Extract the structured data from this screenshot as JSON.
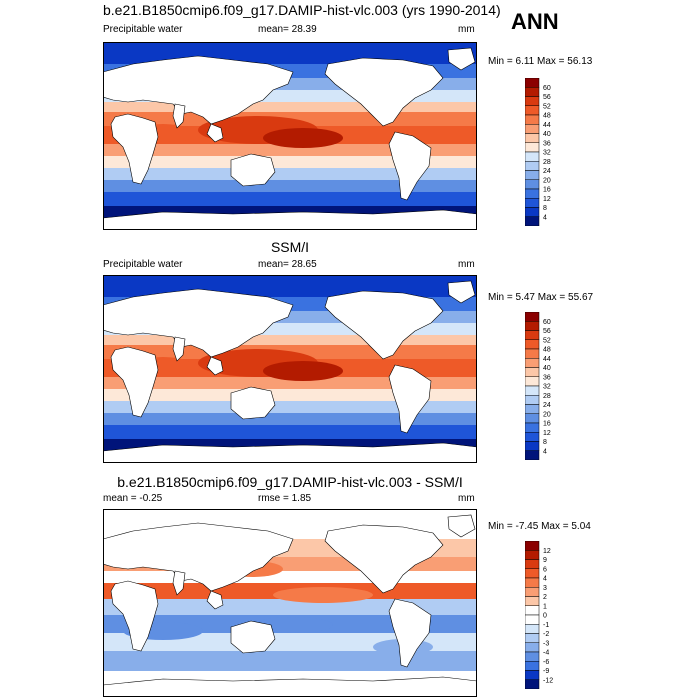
{
  "season": "ANN",
  "panels": [
    {
      "title": "b.e21.B1850cmip6.f09_g17.DAMIP-hist-vlc.003 (yrs 1990-2014)",
      "left_label": "Precipitable water",
      "center_label": "mean=  28.39",
      "units": "mm",
      "minmax": "Min =   6.11 Max =  56.13",
      "kind": "model",
      "levels": [
        "60",
        "56",
        "52",
        "48",
        "44",
        "40",
        "36",
        "32",
        "28",
        "24",
        "20",
        "16",
        "12",
        "8",
        "4"
      ],
      "colors": [
        "#8b0000",
        "#b31b00",
        "#d93a10",
        "#ee5a28",
        "#f57a48",
        "#f99e74",
        "#fcc7a8",
        "#fde8d8",
        "#d4e6f9",
        "#b0ccf3",
        "#88aeea",
        "#5f8fe2",
        "#3a72e0",
        "#1f55d8",
        "#0a38c4",
        "#00147a"
      ]
    },
    {
      "title": "SSM/I",
      "left_label": "Precipitable water",
      "center_label": "mean=  28.65",
      "units": "mm",
      "minmax": "Min =   5.47 Max =  55.67",
      "kind": "obs",
      "levels": [
        "60",
        "56",
        "52",
        "48",
        "44",
        "40",
        "36",
        "32",
        "28",
        "24",
        "20",
        "16",
        "12",
        "8",
        "4"
      ],
      "colors": [
        "#8b0000",
        "#b31b00",
        "#d93a10",
        "#ee5a28",
        "#f57a48",
        "#f99e74",
        "#fcc7a8",
        "#fde8d8",
        "#d4e6f9",
        "#b0ccf3",
        "#88aeea",
        "#5f8fe2",
        "#3a72e0",
        "#1f55d8",
        "#0a38c4",
        "#00147a"
      ]
    },
    {
      "title": "b.e21.B1850cmip6.f09_g17.DAMIP-hist-vlc.003 - SSM/I",
      "left_label": "mean =  -0.25",
      "center_label": "rmse =   1.85",
      "units": "mm",
      "minmax": "Min =  -7.45 Max =   5.04",
      "kind": "diff",
      "levels": [
        "12",
        "9",
        "6",
        "4",
        "3",
        "2",
        "1",
        "0",
        "-1",
        "-2",
        "-3",
        "-4",
        "-6",
        "-9",
        "-12"
      ],
      "colors": [
        "#8b0000",
        "#b31b00",
        "#d93a10",
        "#ee5a28",
        "#f57a48",
        "#f99e74",
        "#fcc7a8",
        "#ffffff",
        "#ffffff",
        "#d4e6f9",
        "#b0ccf3",
        "#88aeea",
        "#5f8fe2",
        "#3a72e0",
        "#0a38c4",
        "#00147a"
      ]
    }
  ]
}
